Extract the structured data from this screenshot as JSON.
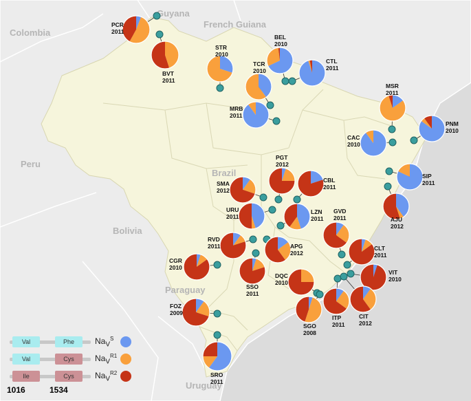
{
  "colors": {
    "navS": "#6b98f0",
    "navR1": "#f9a03c",
    "navR2": "#c53417",
    "water": "#dcdcdc",
    "land": "#ececec",
    "brazil": "#f6f5dc",
    "border": "#ffffff",
    "marker": "#3a9e9e"
  },
  "map_labels": {
    "colombia": "Colombia",
    "guyana": "Guyana",
    "french_guiana": "French Guiana",
    "peru": "Peru",
    "brazil": "Brazil",
    "bolivia": "Bolivia",
    "paraguay": "Paraguay",
    "uruguay": "Uruguay"
  },
  "sites": [
    {
      "code": "PCR",
      "year": "2011",
      "s": 0.06,
      "r1": 0.52,
      "r2": 0.42
    },
    {
      "code": "BVT",
      "year": "2011",
      "s": 0.0,
      "r1": 0.45,
      "r2": 0.55
    },
    {
      "code": "STR",
      "year": "2010",
      "s": 0.3,
      "r1": 0.7,
      "r2": 0.0
    },
    {
      "code": "BEL",
      "year": "2010",
      "s": 0.68,
      "r1": 0.3,
      "r2": 0.02
    },
    {
      "code": "TCR",
      "year": "2010",
      "s": 0.4,
      "r1": 0.6,
      "r2": 0.0
    },
    {
      "code": "CTL",
      "year": "2011",
      "s": 0.95,
      "r1": 0.02,
      "r2": 0.03
    },
    {
      "code": "MRB",
      "year": "2011",
      "s": 0.9,
      "r1": 0.1,
      "r2": 0.0
    },
    {
      "code": "MSR",
      "year": "2011",
      "s": 0.15,
      "r1": 0.8,
      "r2": 0.05
    },
    {
      "code": "PNM",
      "year": "2010",
      "s": 0.85,
      "r1": 0.05,
      "r2": 0.1
    },
    {
      "code": "CAC",
      "year": "2010",
      "s": 0.9,
      "r1": 0.1,
      "r2": 0.0
    },
    {
      "code": "PGT",
      "year": "2012",
      "s": 0.05,
      "r1": 0.2,
      "r2": 0.75
    },
    {
      "code": "CBL",
      "year": "2011",
      "s": 0.2,
      "r1": 0.0,
      "r2": 0.8
    },
    {
      "code": "SIP",
      "year": "2011",
      "s": 0.82,
      "r1": 0.18,
      "r2": 0.0
    },
    {
      "code": "SMA",
      "year": "2012",
      "s": 0.1,
      "r1": 0.2,
      "r2": 0.7
    },
    {
      "code": "URU",
      "year": "2011",
      "s": 0.45,
      "r1": 0.05,
      "r2": 0.5
    },
    {
      "code": "LZN",
      "year": "2011",
      "s": 0.45,
      "r1": 0.15,
      "r2": 0.4
    },
    {
      "code": "AJU",
      "year": "2012",
      "s": 0.4,
      "r1": 0.05,
      "r2": 0.55
    },
    {
      "code": "GVD",
      "year": "2011",
      "s": 0.1,
      "r1": 0.25,
      "r2": 0.65
    },
    {
      "code": "RVD",
      "year": "2011",
      "s": 0.1,
      "r1": 0.1,
      "r2": 0.8
    },
    {
      "code": "APG",
      "year": "2012",
      "s": 0.15,
      "r1": 0.25,
      "r2": 0.6
    },
    {
      "code": "CLT",
      "year": "2011",
      "s": 0.05,
      "r1": 0.1,
      "r2": 0.85
    },
    {
      "code": "CGR",
      "year": "2010",
      "s": 0.05,
      "r1": 0.1,
      "r2": 0.85
    },
    {
      "code": "DQC",
      "year": "2010",
      "s": 0.0,
      "r1": 0.25,
      "r2": 0.75
    },
    {
      "code": "VIT",
      "year": "2010",
      "s": 0.05,
      "r1": 0.0,
      "r2": 0.95
    },
    {
      "code": "SSO",
      "year": "2011",
      "s": 0.05,
      "r1": 0.15,
      "r2": 0.8
    },
    {
      "code": "FOZ",
      "year": "2009",
      "s": 0.1,
      "r1": 0.2,
      "r2": 0.7
    },
    {
      "code": "ITP",
      "year": "2011",
      "s": 0.1,
      "r1": 0.25,
      "r2": 0.65
    },
    {
      "code": "CIT",
      "year": "2012",
      "s": 0.1,
      "r1": 0.3,
      "r2": 0.6
    },
    {
      "code": "SGO",
      "year": "2008",
      "s": 0.05,
      "r1": 0.5,
      "r2": 0.45
    },
    {
      "code": "SRO",
      "year": "2011",
      "s": 0.6,
      "r1": 0.15,
      "r2": 0.25
    }
  ],
  "legend": {
    "rows": [
      {
        "aa1": "Val",
        "aa2": "Phe",
        "nav": "Na",
        "sub": "V",
        "sup": "S"
      },
      {
        "aa1": "Val",
        "aa2": "Cys",
        "nav": "Na",
        "sub": "V",
        "sup": "R1"
      },
      {
        "aa1": "Ile",
        "aa2": "Cys",
        "nav": "Na",
        "sub": "V",
        "sup": "R2"
      }
    ],
    "pos1": "1016",
    "pos2": "1534"
  }
}
